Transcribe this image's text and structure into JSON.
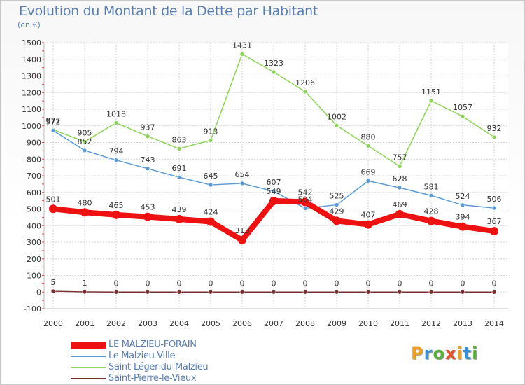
{
  "title": "Evolution du Montant de la Dette par Habitant",
  "subtitle": "(en €)",
  "logo": "Proxiti",
  "chart_data": {
    "type": "line",
    "x": [
      "2000",
      "2001",
      "2002",
      "2003",
      "2004",
      "2005",
      "2006",
      "2007",
      "2008",
      "2009",
      "2010",
      "2011",
      "2012",
      "2013",
      "2014"
    ],
    "ylim": [
      -100,
      1500
    ],
    "yticks": [
      -100,
      0,
      100,
      200,
      300,
      400,
      500,
      600,
      700,
      800,
      900,
      1000,
      1100,
      1200,
      1300,
      1400,
      1500
    ],
    "grid": true,
    "legend_position": "bottom-left",
    "series": [
      {
        "name": "LE MALZIEU-FORAIN",
        "color": "#ee1111",
        "values": [
          501,
          480,
          465,
          453,
          439,
          424,
          313,
          549,
          542,
          429,
          407,
          469,
          428,
          394,
          367
        ]
      },
      {
        "name": "Le Malzieu-Ville",
        "color": "#5b9bd5",
        "values": [
          972,
          852,
          794,
          743,
          691,
          645,
          654,
          607,
          504,
          525,
          669,
          628,
          581,
          524,
          506
        ]
      },
      {
        "name": "Saint-Léger-du-Malzieu",
        "color": "#8ed35a",
        "values": [
          977,
          905,
          1018,
          937,
          863,
          913,
          1431,
          1323,
          1206,
          1002,
          880,
          757,
          1151,
          1057,
          932
        ]
      },
      {
        "name": "Saint-Pierre-le-Vieux",
        "color": "#7a2f2f",
        "values": [
          5,
          1,
          0,
          0,
          0,
          0,
          0,
          0,
          0,
          0,
          0,
          0,
          0,
          0,
          0
        ]
      }
    ]
  }
}
